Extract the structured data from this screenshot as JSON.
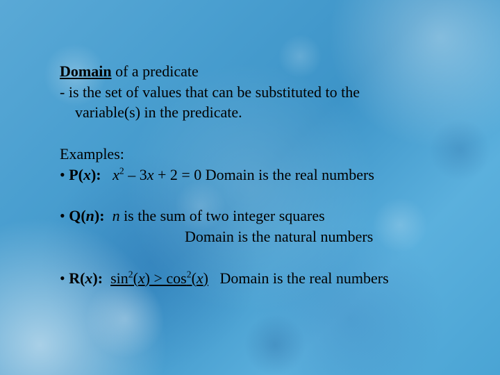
{
  "background_color": "#4aa4d4",
  "text_color": "#000000",
  "font_family": "Times New Roman",
  "base_fontsize_pt": 17,
  "heading": {
    "domain_word": "Domain",
    "after_domain": " of a predicate",
    "def_line1": "- is the set of values that can be substituted to the",
    "def_line2": "variable(s) in the predicate."
  },
  "examples_label": "Examples:",
  "bullet": "•",
  "ex1": {
    "label": "P(",
    "var": "x",
    "label_close": "):",
    "gap": "   ",
    "term1_var": "x",
    "term1_exp": "2",
    "mid": " – 3",
    "term2_var": "x",
    "tail": " + 2 = 0  Domain is the real numbers"
  },
  "ex2": {
    "label": "Q(",
    "var": "n",
    "label_close": "):",
    "gap": "  ",
    "n_var": "n",
    "tail": " is the sum of two integer squares",
    "domain_line": "Domain is  the natural numbers"
  },
  "ex3": {
    "label": "R(",
    "var": "x",
    "label_close": "):",
    "gap": "  ",
    "sin": "sin",
    "exp": "2",
    "open": "(",
    "xvar": "x",
    "close": ")",
    "op": " > ",
    "cos": "cos",
    "tail": "   Domain is the real numbers"
  }
}
